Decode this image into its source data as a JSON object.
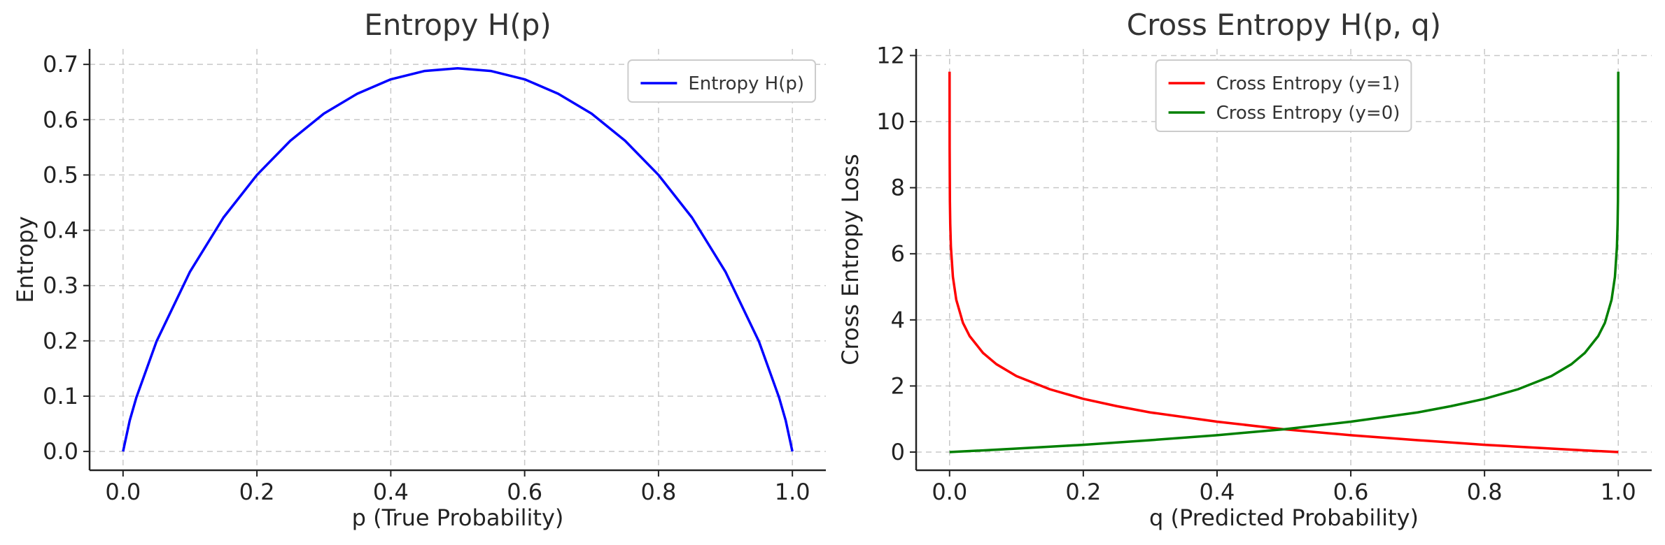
{
  "figure": {
    "width": 2379,
    "height": 780
  },
  "chart_data": [
    {
      "type": "line",
      "title": "Entropy H(p)",
      "xlabel": "p (True Probability)",
      "ylabel": "Entropy",
      "xlim": [
        -0.05,
        1.05
      ],
      "ylim": [
        -0.034,
        0.728
      ],
      "xticks": [
        0.0,
        0.2,
        0.4,
        0.6,
        0.8,
        1.0
      ],
      "xtick_labels": [
        "0.0",
        "0.2",
        "0.4",
        "0.6",
        "0.8",
        "1.0"
      ],
      "yticks": [
        0.0,
        0.1,
        0.2,
        0.3,
        0.4,
        0.5,
        0.6,
        0.7
      ],
      "ytick_labels": [
        "0.0",
        "0.1",
        "0.2",
        "0.3",
        "0.4",
        "0.5",
        "0.6",
        "0.7"
      ],
      "grid": true,
      "legend_position": "top-right",
      "series": [
        {
          "name": "Entropy H(p)",
          "color": "#0000ff",
          "x": [
            0.0,
            0.01,
            0.02,
            0.05,
            0.1,
            0.15,
            0.2,
            0.25,
            0.3,
            0.35,
            0.4,
            0.45,
            0.5,
            0.55,
            0.6,
            0.65,
            0.7,
            0.75,
            0.8,
            0.85,
            0.9,
            0.95,
            0.98,
            0.99,
            1.0
          ],
          "y": [
            0.0,
            0.056,
            0.098,
            0.199,
            0.325,
            0.423,
            0.5,
            0.562,
            0.611,
            0.647,
            0.673,
            0.688,
            0.693,
            0.688,
            0.673,
            0.647,
            0.611,
            0.562,
            0.5,
            0.423,
            0.325,
            0.199,
            0.098,
            0.056,
            0.0
          ]
        }
      ]
    },
    {
      "type": "line",
      "title": "Cross Entropy H(p, q)",
      "xlabel": "q (Predicted Probability)",
      "ylabel": "Cross Entropy Loss",
      "xlim": [
        -0.05,
        1.05
      ],
      "ylim": [
        -0.55,
        12.2
      ],
      "xticks": [
        0.0,
        0.2,
        0.4,
        0.6,
        0.8,
        1.0
      ],
      "xtick_labels": [
        "0.0",
        "0.2",
        "0.4",
        "0.6",
        "0.8",
        "1.0"
      ],
      "yticks": [
        0,
        2,
        4,
        6,
        8,
        10,
        12
      ],
      "ytick_labels": [
        "0",
        "2",
        "4",
        "6",
        "8",
        "10",
        "12"
      ],
      "grid": true,
      "legend_position": "top-center",
      "series": [
        {
          "name": "Cross Entropy (y=1)",
          "color": "#ff0000",
          "x": [
            1e-05,
            0.0001,
            0.0005,
            0.001,
            0.002,
            0.005,
            0.01,
            0.02,
            0.03,
            0.05,
            0.07,
            0.1,
            0.15,
            0.2,
            0.25,
            0.3,
            0.4,
            0.5,
            0.6,
            0.7,
            0.8,
            0.9,
            0.95,
            1.0
          ],
          "y": [
            11.51,
            9.21,
            7.6,
            6.91,
            6.21,
            5.3,
            4.61,
            3.91,
            3.51,
            3.0,
            2.66,
            2.3,
            1.9,
            1.61,
            1.39,
            1.2,
            0.92,
            0.69,
            0.51,
            0.36,
            0.22,
            0.105,
            0.051,
            0.0
          ]
        },
        {
          "name": "Cross Entropy (y=0)",
          "color": "#008000",
          "x": [
            0.0,
            0.05,
            0.1,
            0.2,
            0.3,
            0.4,
            0.5,
            0.6,
            0.7,
            0.75,
            0.8,
            0.85,
            0.9,
            0.93,
            0.95,
            0.97,
            0.98,
            0.99,
            0.995,
            0.998,
            0.999,
            0.9995,
            0.9999,
            0.99999
          ],
          "y": [
            0.0,
            0.051,
            0.105,
            0.22,
            0.36,
            0.51,
            0.69,
            0.92,
            1.2,
            1.39,
            1.61,
            1.9,
            2.3,
            2.66,
            3.0,
            3.51,
            3.91,
            4.61,
            5.3,
            6.21,
            6.91,
            7.6,
            9.21,
            11.51
          ]
        }
      ]
    }
  ]
}
